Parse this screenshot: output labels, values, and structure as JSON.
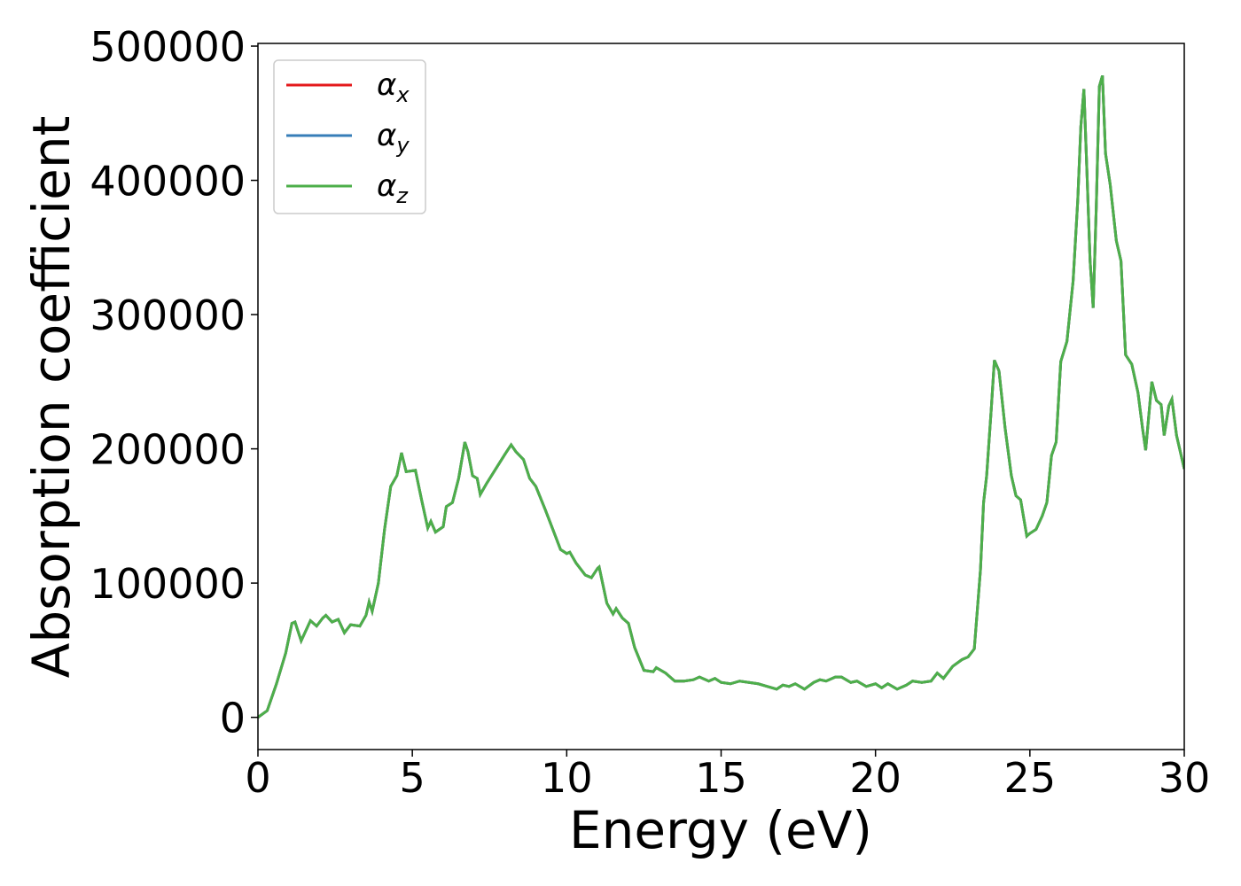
{
  "chart_data": {
    "type": "line",
    "xlabel": "Energy (eV)",
    "ylabel": "Absorption coefficient",
    "xlim": [
      0,
      30
    ],
    "ylim": [
      -24000,
      502000
    ],
    "xticks": [
      0,
      5,
      10,
      15,
      20,
      25,
      30
    ],
    "yticks": [
      0,
      100000,
      200000,
      300000,
      400000,
      500000
    ],
    "legend": "upper left",
    "x": [
      0,
      0.3,
      0.6,
      0.9,
      1.1,
      1.2,
      1.4,
      1.7,
      1.9,
      2.1,
      2.2,
      2.4,
      2.6,
      2.8,
      3.0,
      3.3,
      3.5,
      3.6,
      3.7,
      3.9,
      4.1,
      4.3,
      4.5,
      4.65,
      4.8,
      5.1,
      5.3,
      5.5,
      5.6,
      5.75,
      6.0,
      6.1,
      6.3,
      6.5,
      6.7,
      6.8,
      6.95,
      7.1,
      7.2,
      7.4,
      7.7,
      8.0,
      8.2,
      8.35,
      8.6,
      8.8,
      9.0,
      9.3,
      9.5,
      9.8,
      10.0,
      10.1,
      10.3,
      10.6,
      10.8,
      11.0,
      11.05,
      11.3,
      11.5,
      11.6,
      11.8,
      12.0,
      12.2,
      12.5,
      12.8,
      12.9,
      13.2,
      13.5,
      13.8,
      14.1,
      14.3,
      14.6,
      14.8,
      15.0,
      15.3,
      15.6,
      15.9,
      16.2,
      16.5,
      16.8,
      17.0,
      17.2,
      17.4,
      17.7,
      18.0,
      18.2,
      18.4,
      18.7,
      18.9,
      19.2,
      19.4,
      19.7,
      20.0,
      20.2,
      20.4,
      20.7,
      21.0,
      21.2,
      21.5,
      21.8,
      22.0,
      22.2,
      22.5,
      22.8,
      23.0,
      23.2,
      23.4,
      23.5,
      23.6,
      23.75,
      23.85,
      24.0,
      24.2,
      24.4,
      24.55,
      24.7,
      24.9,
      25.0,
      25.2,
      25.4,
      25.55,
      25.7,
      25.85,
      26.0,
      26.2,
      26.4,
      26.55,
      26.65,
      26.75,
      26.85,
      26.95,
      27.05,
      27.15,
      27.25,
      27.35,
      27.45,
      27.6,
      27.8,
      27.95,
      28.1,
      28.3,
      28.5,
      28.65,
      28.75,
      28.95,
      29.1,
      29.25,
      29.35,
      29.5,
      29.6,
      29.75,
      29.9,
      30.0
    ],
    "series": [
      {
        "name": "αx",
        "color": "#e41a1c",
        "values": [
          0,
          5000,
          25000,
          48000,
          70000,
          71000,
          57000,
          72000,
          68000,
          74000,
          76000,
          71000,
          73000,
          63000,
          69000,
          68000,
          76000,
          86000,
          79000,
          100000,
          140000,
          172000,
          180000,
          197000,
          183000,
          184000,
          162000,
          141000,
          146000,
          138000,
          142000,
          157000,
          160000,
          178000,
          205000,
          198000,
          180000,
          178000,
          166000,
          174000,
          185000,
          196000,
          203000,
          198000,
          192000,
          178000,
          172000,
          155000,
          143000,
          125000,
          122000,
          123000,
          115000,
          106000,
          104000,
          111000,
          112000,
          85000,
          77000,
          81000,
          74000,
          70000,
          52000,
          35000,
          34000,
          37000,
          33000,
          27000,
          27000,
          28000,
          30000,
          27000,
          29000,
          26000,
          25000,
          27000,
          26000,
          25000,
          23000,
          21000,
          24000,
          23000,
          25000,
          21000,
          26000,
          28000,
          27000,
          30000,
          30000,
          26000,
          27000,
          23000,
          25000,
          22000,
          25000,
          21000,
          24000,
          27000,
          26000,
          27000,
          33000,
          29000,
          38000,
          43000,
          45000,
          51000,
          110000,
          160000,
          180000,
          230000,
          266000,
          258000,
          215000,
          180000,
          165000,
          162000,
          135000,
          137000,
          140000,
          150000,
          160000,
          195000,
          205000,
          265000,
          280000,
          325000,
          385000,
          440000,
          468000,
          405000,
          340000,
          305000,
          380000,
          470000,
          478000,
          420000,
          397000,
          355000,
          340000,
          270000,
          263000,
          242000,
          215000,
          199000,
          250000,
          236000,
          233000,
          210000,
          232000,
          237000,
          210000,
          195000,
          185000
        ]
      },
      {
        "name": "αy",
        "color": "#377eb8",
        "values": [
          0,
          5000,
          25000,
          48000,
          70000,
          71000,
          57000,
          72000,
          68000,
          74000,
          76000,
          71000,
          73000,
          63000,
          69000,
          68000,
          76000,
          86000,
          79000,
          100000,
          140000,
          172000,
          180000,
          197000,
          183000,
          184000,
          162000,
          141000,
          146000,
          138000,
          142000,
          157000,
          160000,
          178000,
          205000,
          198000,
          180000,
          178000,
          166000,
          174000,
          185000,
          196000,
          203000,
          198000,
          192000,
          178000,
          172000,
          155000,
          143000,
          125000,
          122000,
          123000,
          115000,
          106000,
          104000,
          111000,
          112000,
          85000,
          77000,
          81000,
          74000,
          70000,
          52000,
          35000,
          34000,
          37000,
          33000,
          27000,
          27000,
          28000,
          30000,
          27000,
          29000,
          26000,
          25000,
          27000,
          26000,
          25000,
          23000,
          21000,
          24000,
          23000,
          25000,
          21000,
          26000,
          28000,
          27000,
          30000,
          30000,
          26000,
          27000,
          23000,
          25000,
          22000,
          25000,
          21000,
          24000,
          27000,
          26000,
          27000,
          33000,
          29000,
          38000,
          43000,
          45000,
          51000,
          110000,
          160000,
          180000,
          230000,
          266000,
          258000,
          215000,
          180000,
          165000,
          162000,
          135000,
          137000,
          140000,
          150000,
          160000,
          195000,
          205000,
          265000,
          280000,
          325000,
          385000,
          440000,
          468000,
          405000,
          340000,
          305000,
          380000,
          470000,
          478000,
          420000,
          397000,
          355000,
          340000,
          270000,
          263000,
          242000,
          215000,
          199000,
          250000,
          236000,
          233000,
          210000,
          232000,
          237000,
          210000,
          195000,
          185000
        ]
      },
      {
        "name": "αz",
        "color": "#4daf4a",
        "values": [
          0,
          5000,
          25000,
          48000,
          70000,
          71000,
          57000,
          72000,
          68000,
          74000,
          76000,
          71000,
          73000,
          63000,
          69000,
          68000,
          76000,
          86000,
          79000,
          100000,
          140000,
          172000,
          180000,
          197000,
          183000,
          184000,
          162000,
          141000,
          146000,
          138000,
          142000,
          157000,
          160000,
          178000,
          205000,
          198000,
          180000,
          178000,
          166000,
          174000,
          185000,
          196000,
          203000,
          198000,
          192000,
          178000,
          172000,
          155000,
          143000,
          125000,
          122000,
          123000,
          115000,
          106000,
          104000,
          111000,
          112000,
          85000,
          77000,
          81000,
          74000,
          70000,
          52000,
          35000,
          34000,
          37000,
          33000,
          27000,
          27000,
          28000,
          30000,
          27000,
          29000,
          26000,
          25000,
          27000,
          26000,
          25000,
          23000,
          21000,
          24000,
          23000,
          25000,
          21000,
          26000,
          28000,
          27000,
          30000,
          30000,
          26000,
          27000,
          23000,
          25000,
          22000,
          25000,
          21000,
          24000,
          27000,
          26000,
          27000,
          33000,
          29000,
          38000,
          43000,
          45000,
          51000,
          110000,
          160000,
          180000,
          230000,
          266000,
          258000,
          215000,
          180000,
          165000,
          162000,
          135000,
          137000,
          140000,
          150000,
          160000,
          195000,
          205000,
          265000,
          280000,
          325000,
          385000,
          440000,
          468000,
          405000,
          340000,
          305000,
          380000,
          470000,
          478000,
          420000,
          397000,
          355000,
          340000,
          270000,
          263000,
          242000,
          215000,
          199000,
          250000,
          236000,
          233000,
          210000,
          232000,
          237000,
          210000,
          195000,
          185000
        ]
      }
    ]
  }
}
